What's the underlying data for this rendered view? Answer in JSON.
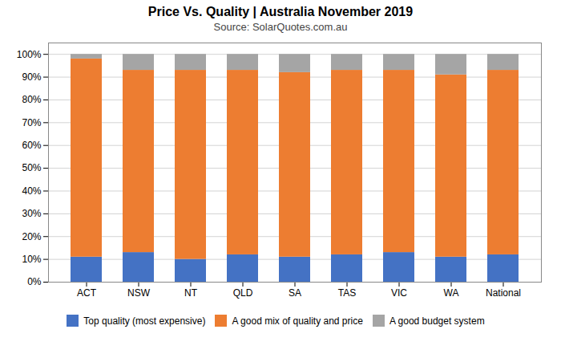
{
  "chart_data": {
    "type": "bar",
    "stacked": true,
    "title": "Price Vs. Quality | Australia November 2019",
    "subtitle": "Source: SolarQuotes.com.au",
    "categories": [
      "ACT",
      "NSW",
      "NT",
      "QLD",
      "SA",
      "TAS",
      "VIC",
      "WA",
      "National"
    ],
    "series": [
      {
        "name": "Top quality (most expensive)",
        "color": "#4472C4",
        "values": [
          11,
          13,
          10,
          12,
          11,
          12,
          13,
          11,
          12
        ]
      },
      {
        "name": "A good mix of quality and price",
        "color": "#ED7D31",
        "values": [
          87,
          80,
          83,
          81,
          81,
          81,
          80,
          80,
          81
        ]
      },
      {
        "name": "A good budget system",
        "color": "#A5A5A5",
        "values": [
          2,
          7,
          7,
          7,
          8,
          7,
          7,
          9,
          7
        ]
      }
    ],
    "ylim": [
      0,
      105
    ],
    "yticks": [
      {
        "value": 0,
        "label": "0%"
      },
      {
        "value": 10,
        "label": "10%"
      },
      {
        "value": 20,
        "label": "20%"
      },
      {
        "value": 30,
        "label": "30%"
      },
      {
        "value": 40,
        "label": "40%"
      },
      {
        "value": 50,
        "label": "50%"
      },
      {
        "value": 60,
        "label": "60%"
      },
      {
        "value": 70,
        "label": "70%"
      },
      {
        "value": 80,
        "label": "80%"
      },
      {
        "value": 90,
        "label": "90%"
      },
      {
        "value": 100,
        "label": "100%"
      }
    ],
    "grid": true,
    "legend": "bottom"
  }
}
